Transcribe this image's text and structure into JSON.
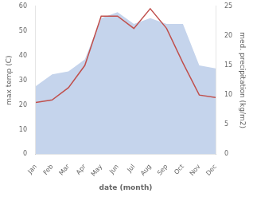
{
  "chart_data": {
    "type": "line",
    "xlabel": "date (month)",
    "ylabel": "max temp (C)",
    "y2label": "med. precipitation (kg/m2)",
    "categories": [
      "Jan",
      "Feb",
      "Mar",
      "Apr",
      "May",
      "Jun",
      "Jul",
      "Aug",
      "Sep",
      "Oct",
      "Nov",
      "Dec"
    ],
    "series": [
      {
        "type": "area",
        "axis": "y2",
        "color": "#c5d4ec",
        "values": [
          11.5,
          13.5,
          14,
          16,
          23,
          24,
          22,
          23,
          22,
          22,
          15,
          14.5
        ]
      },
      {
        "type": "line",
        "color": "#c0504d",
        "values": [
          21,
          22,
          27,
          36,
          56,
          56,
          51,
          59,
          51,
          37,
          24,
          23
        ]
      }
    ],
    "ylim": [
      0,
      60
    ],
    "yticks": [
      0,
      10,
      20,
      30,
      40,
      50,
      60
    ],
    "y2lim": [
      0,
      25
    ],
    "y2ticks": [
      0,
      5,
      10,
      15,
      20,
      25
    ],
    "grid": false
  }
}
